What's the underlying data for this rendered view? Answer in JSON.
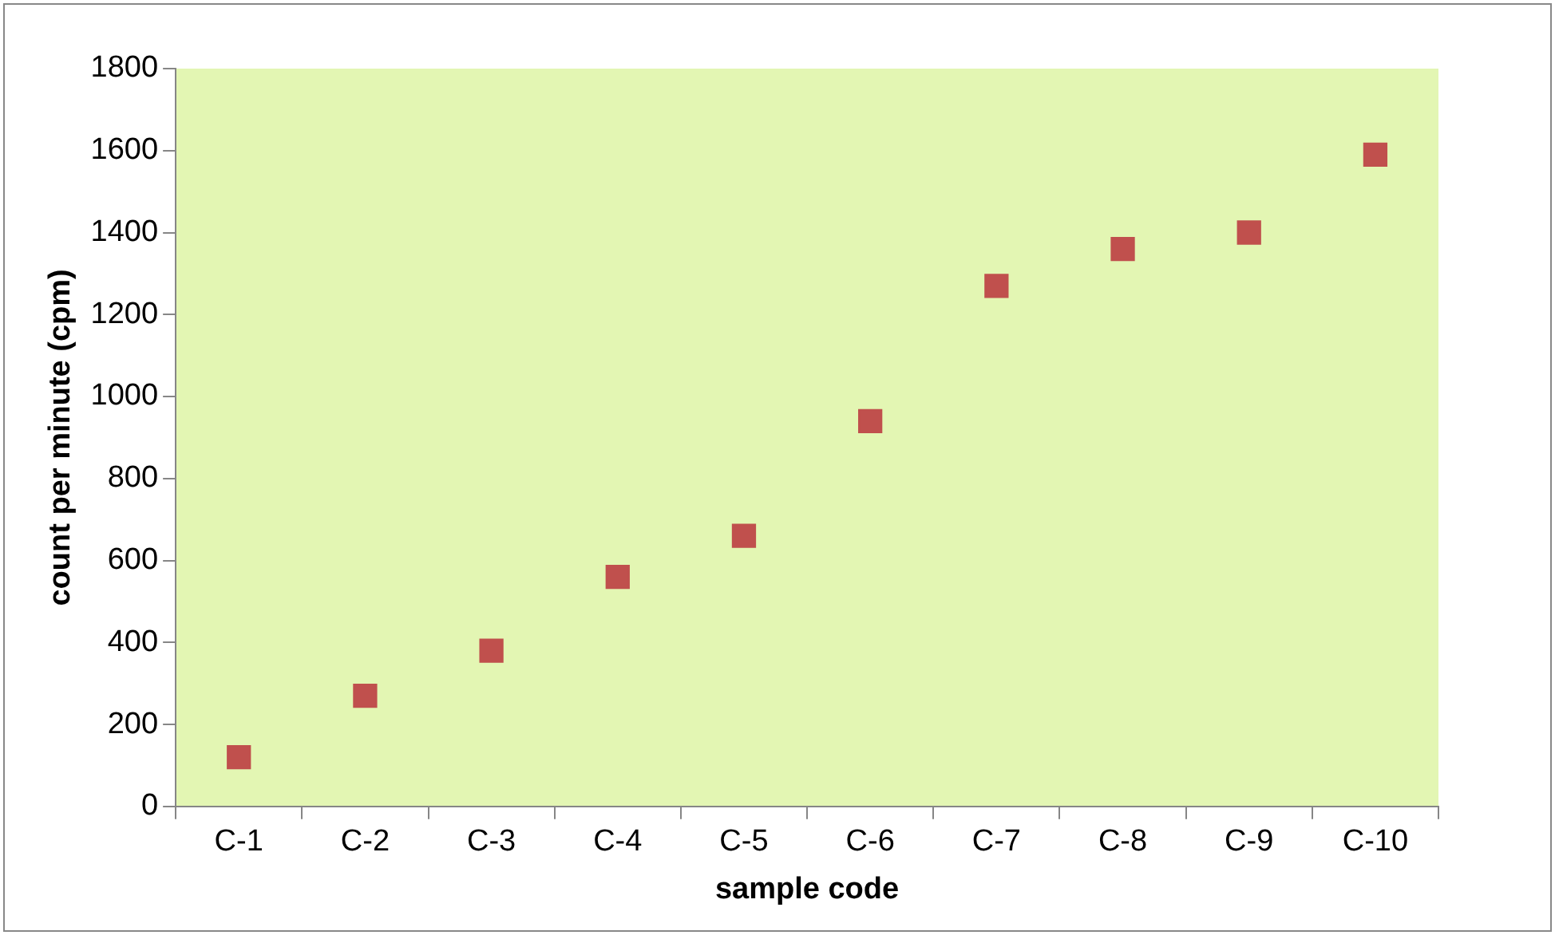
{
  "chart_data": {
    "type": "scatter",
    "xlabel": "sample code",
    "ylabel": "count per minute (cpm)",
    "categories": [
      "C-1",
      "C-2",
      "C-3",
      "C-4",
      "C-5",
      "C-6",
      "C-7",
      "C-8",
      "C-9",
      "C-10"
    ],
    "series": [
      {
        "color": "#c0504d",
        "values": [
          120,
          270,
          380,
          560,
          660,
          940,
          1270,
          1360,
          1400,
          1590
        ]
      }
    ],
    "ylim": [
      0,
      1800
    ],
    "yticks": [
      0,
      200,
      400,
      600,
      800,
      1000,
      1200,
      1400,
      1600,
      1800
    ],
    "grid": false,
    "legend": false,
    "marker": "square"
  }
}
